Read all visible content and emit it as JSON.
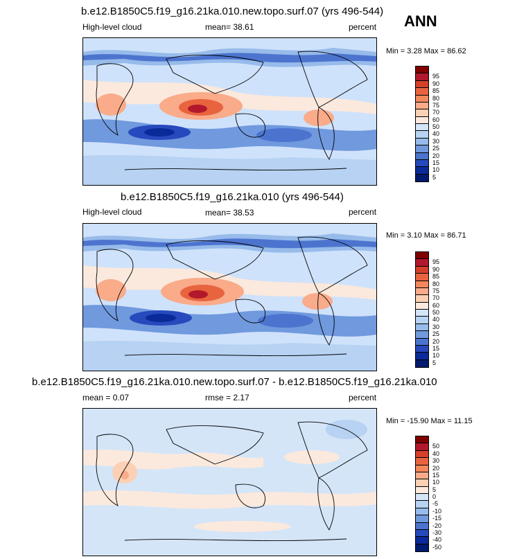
{
  "season": "ANN",
  "chart_data": [
    {
      "type": "heatmap",
      "title": "b.e12.B1850C5.f19_g16.21ka.010.new.topo.surf.07 (yrs 496-544)",
      "left_label": "High-level cloud",
      "mean_label": "mean=",
      "mean_value": "38.61",
      "units": "percent",
      "min_label": "Min =",
      "min_value": "3.28",
      "max_label": "Max =",
      "max_value": "86.62",
      "colorbar_levels": [
        "95",
        "90",
        "85",
        "80",
        "75",
        "70",
        "60",
        "50",
        "40",
        "30",
        "25",
        "20",
        "15",
        "10",
        "5"
      ],
      "colorbar_colors": [
        "#800000",
        "#b2182b",
        "#d6402b",
        "#e8643e",
        "#f4885c",
        "#f9ab8a",
        "#fbd0b4",
        "#fbe9dd",
        "#d4e5f8",
        "#b7d2f2",
        "#97bbea",
        "#7099de",
        "#4c74cf",
        "#2649bd",
        "#0a2a9a",
        "#001a6e"
      ]
    },
    {
      "type": "heatmap",
      "title": "b.e12.B1850C5.f19_g16.21ka.010 (yrs 496-544)",
      "left_label": "High-level cloud",
      "mean_label": "mean=",
      "mean_value": "38.53",
      "units": "percent",
      "min_label": "Min =",
      "min_value": "3.10",
      "max_label": "Max =",
      "max_value": "86.71",
      "colorbar_levels": [
        "95",
        "90",
        "85",
        "80",
        "75",
        "70",
        "60",
        "50",
        "40",
        "30",
        "25",
        "20",
        "15",
        "10",
        "5"
      ],
      "colorbar_colors": [
        "#800000",
        "#b2182b",
        "#d6402b",
        "#e8643e",
        "#f4885c",
        "#f9ab8a",
        "#fbd0b4",
        "#fbe9dd",
        "#d4e5f8",
        "#b7d2f2",
        "#97bbea",
        "#7099de",
        "#4c74cf",
        "#2649bd",
        "#0a2a9a",
        "#001a6e"
      ]
    },
    {
      "type": "heatmap",
      "title": "b.e12.B1850C5.f19_g16.21ka.010.new.topo.surf.07 - b.e12.B1850C5.f19_g16.21ka.010",
      "mean_label": "mean =",
      "mean_value": "0.07",
      "rmse_label": "rmse =",
      "rmse_value": "2.17",
      "units": "percent",
      "min_label": "Min =",
      "min_value": "-15.90",
      "max_label": "Max =",
      "max_value": "11.15",
      "colorbar_levels": [
        "50",
        "40",
        "30",
        "20",
        "15",
        "10",
        "5",
        "0",
        "-5",
        "-10",
        "-15",
        "-20",
        "-30",
        "-40",
        "-50"
      ],
      "colorbar_colors": [
        "#800000",
        "#b2182b",
        "#d6402b",
        "#e8643e",
        "#f4885c",
        "#f9ab8a",
        "#fbd0b4",
        "#fbe9dd",
        "#d4e5f8",
        "#b7d2f2",
        "#97bbea",
        "#7099de",
        "#4c74cf",
        "#2649bd",
        "#0a2a9a",
        "#001a6e"
      ]
    }
  ]
}
